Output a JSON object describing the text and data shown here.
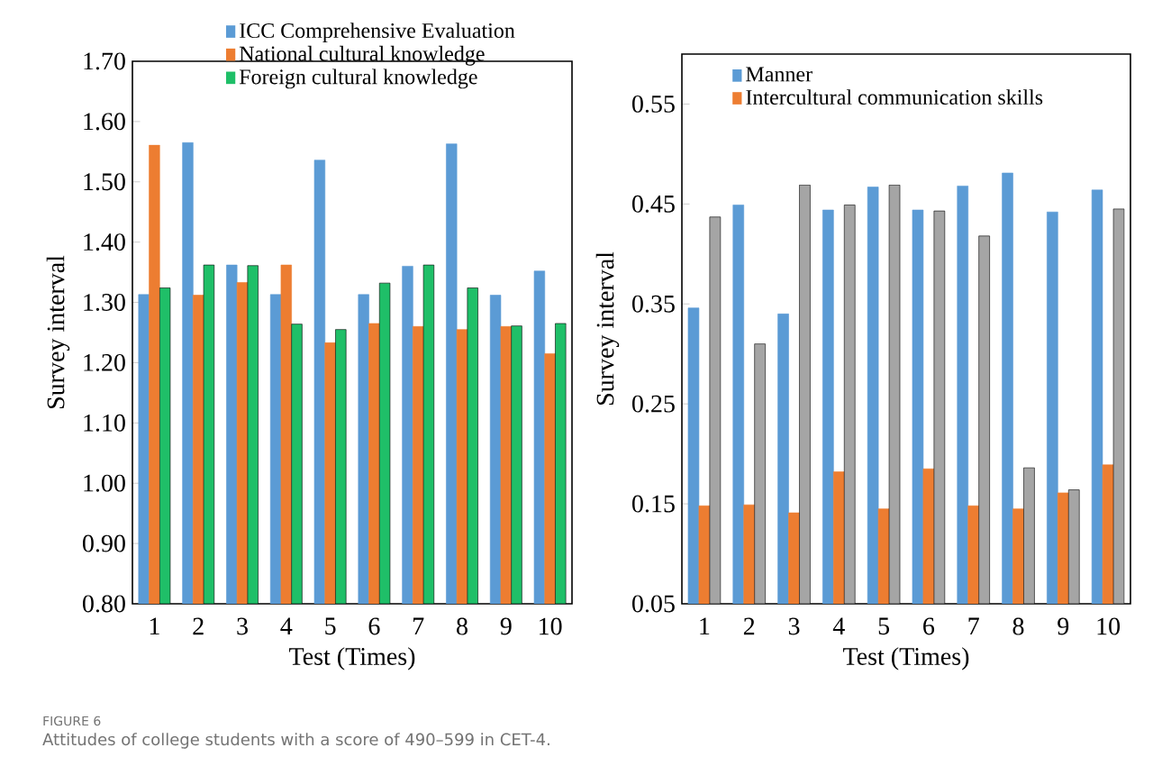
{
  "chart_data": [
    {
      "type": "bar",
      "categories": [
        "1",
        "2",
        "3",
        "4",
        "5",
        "6",
        "7",
        "8",
        "9",
        "10"
      ],
      "xlabel": "Test (Times)",
      "ylabel": "Survey interval",
      "ylim": [
        0.8,
        1.7
      ],
      "yticks": [
        {
          "value": 0.8,
          "label": "0.80"
        },
        {
          "value": 0.9,
          "label": "0.90"
        },
        {
          "value": 1.0,
          "label": "1.00"
        },
        {
          "value": 1.1,
          "label": "1.10"
        },
        {
          "value": 1.2,
          "label": "1.20"
        },
        {
          "value": 1.3,
          "label": "1.30"
        },
        {
          "value": 1.4,
          "label": "1.40"
        },
        {
          "value": 1.5,
          "label": "1.50"
        },
        {
          "value": 1.6,
          "label": "1.60"
        },
        {
          "value": 1.7,
          "label": "1.70"
        }
      ],
      "legend": "top",
      "grid": false,
      "series": [
        {
          "name": "ICC Comprehensive Evaluation",
          "color": "#5b9bd5",
          "values": [
            1.313,
            1.565,
            1.362,
            1.313,
            1.536,
            1.313,
            1.36,
            1.563,
            1.312,
            1.352
          ]
        },
        {
          "name": "National cultural knowledge",
          "color": "#ed7d31",
          "values": [
            1.561,
            1.312,
            1.333,
            1.362,
            1.233,
            1.265,
            1.26,
            1.255,
            1.26,
            1.215
          ]
        },
        {
          "name": "Foreign cultural knowledge",
          "color": "#1fbf68",
          "values": [
            1.324,
            1.362,
            1.361,
            1.264,
            1.255,
            1.332,
            1.362,
            1.324,
            1.261,
            1.265
          ]
        }
      ],
      "annotations": [
        "FIGURE 6",
        "Attitudes of college students with a score of 490–599 in CET-4."
      ]
    },
    {
      "type": "bar",
      "categories": [
        "1",
        "2",
        "3",
        "4",
        "5",
        "6",
        "7",
        "8",
        "9",
        "10"
      ],
      "xlabel": "Test (Times)",
      "ylabel": "Survey interval",
      "ylim": [
        0.05,
        0.6
      ],
      "yticks": [
        0.05,
        0.15,
        0.25,
        0.35,
        0.45,
        0.55
      ],
      "legend": "top left",
      "grid": false,
      "series": [
        {
          "name": "Manner",
          "color": "#5b9bd5",
          "values": [
            0.346,
            0.449,
            0.34,
            0.444,
            0.467,
            0.444,
            0.468,
            0.481,
            0.442,
            0.464
          ]
        },
        {
          "name": "Intercultural communication skills",
          "color": "#ed7d31",
          "values": [
            0.148,
            0.149,
            0.141,
            0.182,
            0.145,
            0.185,
            0.148,
            0.145,
            0.161,
            0.189
          ]
        },
        {
          "color": "#a5a5a5",
          "values": [
            0.437,
            0.31,
            0.469,
            0.449,
            0.469,
            0.443,
            0.418,
            0.186,
            0.164,
            0.445
          ]
        }
      ]
    }
  ]
}
